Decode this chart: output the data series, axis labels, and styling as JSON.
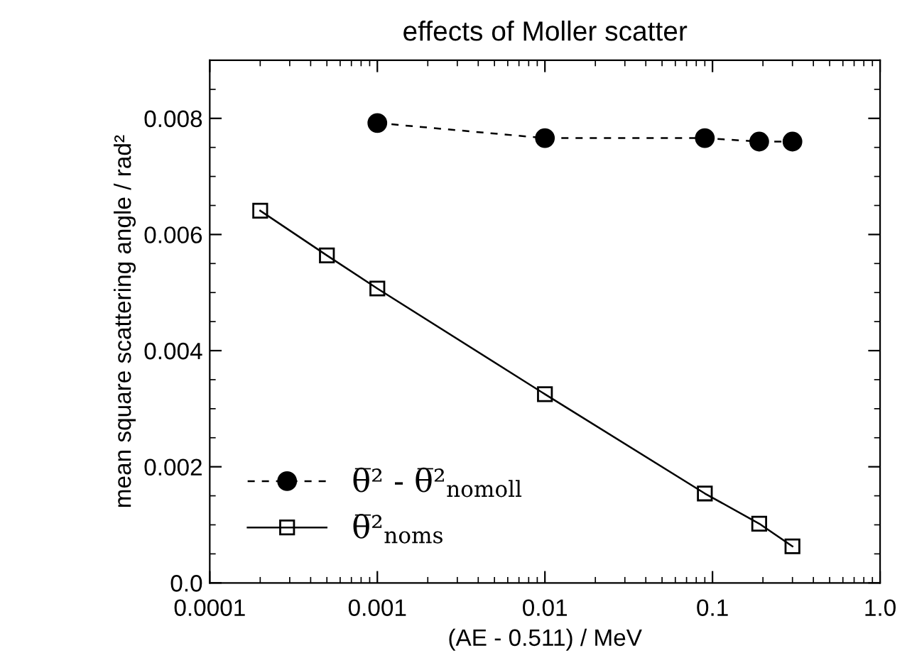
{
  "chart_data": {
    "type": "line",
    "title": "effects of Moller scatter",
    "xlabel": "(AE - 0.511) / MeV",
    "ylabel": "mean square scattering angle / rad²",
    "log": "x",
    "xlim": [
      0.0001,
      1.0
    ],
    "xticks": [
      {
        "value": 0.0001,
        "label": "0.0001"
      },
      {
        "value": 0.001,
        "label": "0.001"
      },
      {
        "value": 0.01,
        "label": "0.01"
      },
      {
        "value": 0.1,
        "label": "0.1"
      },
      {
        "value": 1.0,
        "label": "1.0"
      }
    ],
    "ylim": [
      0,
      0.009
    ],
    "yticks": [
      {
        "value": 0,
        "label": "0.0"
      },
      0.002,
      0.004,
      0.006,
      0.008
    ],
    "grid": false,
    "legend": "bottom left",
    "series": [
      {
        "name": "θ̅² - θ̅²$_{nomoll}$",
        "color": "#000000",
        "marker": "circle",
        "line_style": "dashed",
        "x": [
          0.001,
          0.01,
          0.09,
          0.19,
          0.3
        ],
        "values": [
          0.00792,
          0.00766,
          0.00766,
          0.0076,
          0.0076
        ]
      },
      {
        "name": "θ̅²$_{noms}$",
        "color": "#000000",
        "marker": "square",
        "line_style": "solid",
        "x": [
          0.0002,
          0.0005,
          0.001,
          0.01,
          0.09,
          0.19,
          0.3
        ],
        "values": [
          0.00641,
          0.00564,
          0.00507,
          0.00325,
          0.00154,
          0.00102,
          0.00063
        ]
      }
    ]
  }
}
